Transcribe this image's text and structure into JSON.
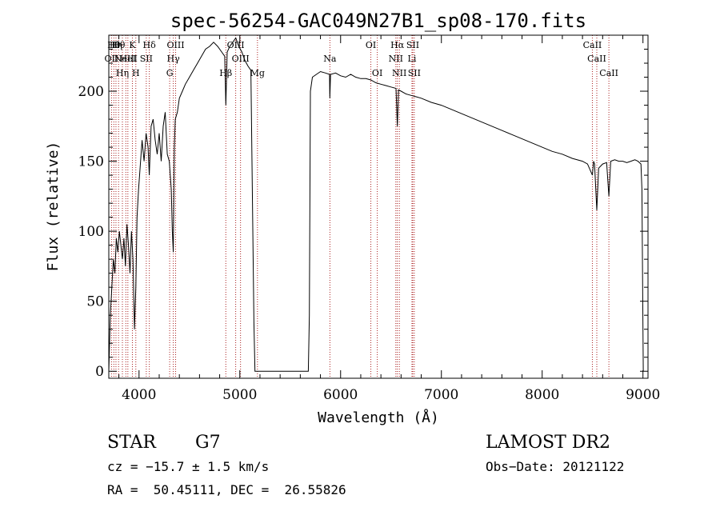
{
  "chart_data": {
    "type": "line",
    "title": "spec-56254-GAC049N27B1_sp08-170.fits",
    "xlabel": "Wavelength (Å)",
    "ylabel": "Flux (relative)",
    "xlim": [
      3700,
      9050
    ],
    "ylim": [
      -5,
      240
    ],
    "xticks": [
      4000,
      5000,
      6000,
      7000,
      8000,
      9000
    ],
    "yticks": [
      0,
      50,
      100,
      150,
      200
    ],
    "grid": false,
    "line_color": "#000000",
    "marker_color": "#aa2222",
    "series": [
      {
        "x": [
          3700,
          3715,
          3730,
          3745,
          3760,
          3775,
          3790,
          3805,
          3820,
          3835,
          3850,
          3865,
          3880,
          3895,
          3910,
          3925,
          3940,
          3955,
          3968,
          3980,
          3995,
          4010,
          4030,
          4050,
          4070,
          4090,
          4102,
          4120,
          4140,
          4160,
          4180,
          4200,
          4220,
          4240,
          4260,
          4280,
          4300,
          4320,
          4330,
          4340,
          4350,
          4360,
          4380,
          4400,
          4430,
          4460,
          4500,
          4540,
          4580,
          4620,
          4660,
          4700,
          4740,
          4780,
          4820,
          4850,
          4861,
          4875,
          4900,
          4930,
          4960,
          4990,
          5020,
          5050,
          5080,
          5110,
          5140,
          5150,
          5170,
          5185,
          5200,
          5640,
          5660,
          5680,
          5690,
          5700,
          5720,
          5760,
          5800,
          5850,
          5890,
          5893,
          5900,
          5950,
          6000,
          6050,
          6100,
          6150,
          6200,
          6250,
          6300,
          6350,
          6400,
          6450,
          6500,
          6550,
          6563,
          6575,
          6600,
          6650,
          6700,
          6750,
          6800,
          6900,
          7000,
          7100,
          7200,
          7300,
          7400,
          7500,
          7600,
          7700,
          7800,
          7900,
          8000,
          8100,
          8200,
          8300,
          8400,
          8450,
          8498,
          8510,
          8520,
          8542,
          8560,
          8600,
          8640,
          8662,
          8680,
          8720,
          8760,
          8800,
          8840,
          8880,
          8920,
          8950,
          8980,
          8990,
          9000,
          9003
        ],
        "y": [
          0,
          40,
          60,
          80,
          70,
          95,
          85,
          100,
          90,
          80,
          95,
          75,
          105,
          90,
          70,
          100,
          80,
          30,
          60,
          110,
          130,
          145,
          165,
          150,
          170,
          160,
          140,
          175,
          180,
          165,
          155,
          170,
          150,
          175,
          185,
          155,
          150,
          130,
          100,
          85,
          160,
          180,
          185,
          195,
          200,
          205,
          210,
          215,
          220,
          225,
          230,
          232,
          235,
          232,
          228,
          225,
          190,
          228,
          232,
          235,
          238,
          232,
          228,
          222,
          218,
          215,
          35,
          0,
          0,
          0,
          0,
          0,
          0,
          0,
          40,
          200,
          210,
          212,
          214,
          213,
          212,
          195,
          212,
          213,
          211,
          210,
          212,
          210,
          209,
          209,
          208,
          206,
          205,
          204,
          203,
          202,
          175,
          201,
          200,
          198,
          197,
          196,
          195,
          192,
          190,
          187,
          184,
          181,
          178,
          175,
          172,
          169,
          166,
          163,
          160,
          157,
          155,
          152,
          150,
          148,
          140,
          150,
          148,
          115,
          145,
          148,
          149,
          125,
          150,
          151,
          150,
          150,
          149,
          150,
          151,
          150,
          148,
          130,
          30,
          0
        ]
      }
    ],
    "lines": [
      {
        "x": 3727,
        "label": "OII",
        "row": 1
      },
      {
        "x": 3750,
        "label": "Hθ",
        "row": 0
      },
      {
        "x": 3771,
        "label": "Hη",
        "row": 0
      },
      {
        "x": 3797,
        "label": "Hθ",
        "row": 0
      },
      {
        "x": 3835,
        "label": "Hη",
        "row": 2
      },
      {
        "x": 3869,
        "label": "NeIII",
        "row": 1
      },
      {
        "x": 3889,
        "label": "HeI",
        "row": 1
      },
      {
        "x": 3934,
        "label": "K",
        "row": 0
      },
      {
        "x": 3968,
        "label": "H",
        "row": 2
      },
      {
        "x": 4072,
        "label": "SII",
        "row": 1
      },
      {
        "x": 4102,
        "label": "Hδ",
        "row": 0
      },
      {
        "x": 4304,
        "label": "G",
        "row": 2
      },
      {
        "x": 4340,
        "label": "Hγ",
        "row": 1
      },
      {
        "x": 4363,
        "label": "OIII",
        "row": 0
      },
      {
        "x": 4861,
        "label": "Hβ",
        "row": 2
      },
      {
        "x": 4959,
        "label": "OIII",
        "row": 0
      },
      {
        "x": 5007,
        "label": "OIII",
        "row": 1
      },
      {
        "x": 5175,
        "label": "Mg",
        "row": 2
      },
      {
        "x": 5894,
        "label": "Na",
        "row": 1
      },
      {
        "x": 6300,
        "label": "OI",
        "row": 0
      },
      {
        "x": 6364,
        "label": "OI",
        "row": 2
      },
      {
        "x": 6548,
        "label": "NII",
        "row": 1
      },
      {
        "x": 6563,
        "label": "Hα",
        "row": 0
      },
      {
        "x": 6583,
        "label": "NII",
        "row": 2
      },
      {
        "x": 6708,
        "label": "Li",
        "row": 1
      },
      {
        "x": 6716,
        "label": "SII",
        "row": 0
      },
      {
        "x": 6731,
        "label": "SII",
        "row": 2
      },
      {
        "x": 8498,
        "label": "CaII",
        "row": 0
      },
      {
        "x": 8542,
        "label": "CaII",
        "row": 1
      },
      {
        "x": 8662,
        "label": "CaII",
        "row": 2
      }
    ]
  },
  "info": {
    "class": "STAR",
    "subclass": "G7",
    "cz": "cz = −15.7 ± 1.5 km/s",
    "radec": "RA =  50.45111, DEC =  26.55826",
    "survey": "LAMOST DR2",
    "obsdate": "Obs−Date: 20121122"
  }
}
